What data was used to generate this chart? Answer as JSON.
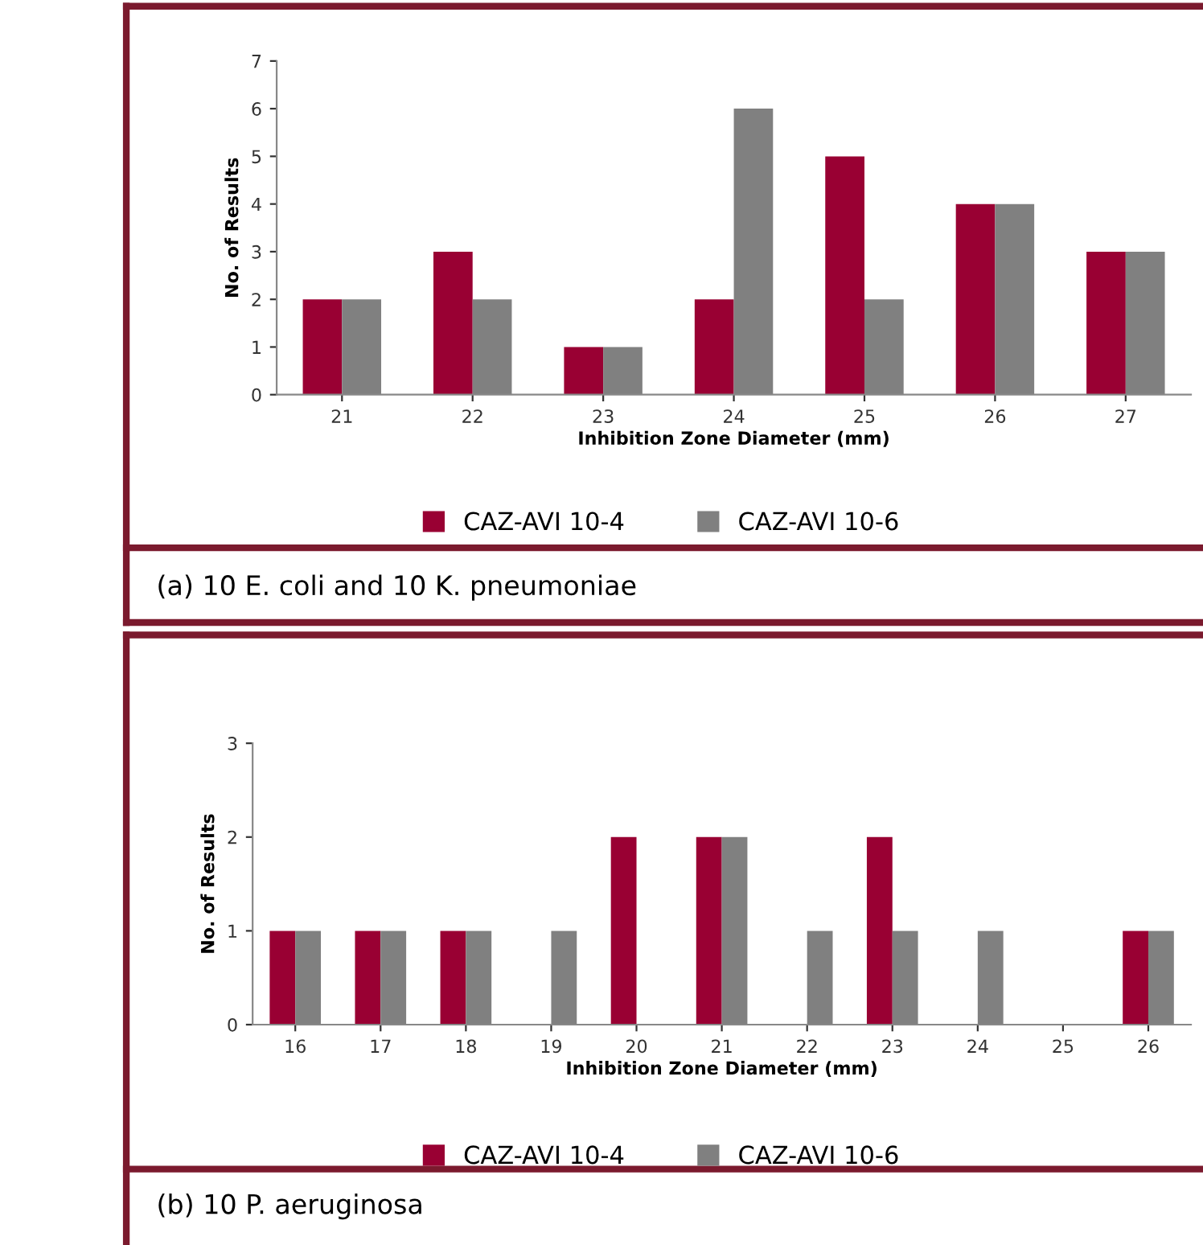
{
  "chart_data": [
    {
      "type": "bar",
      "categories": [
        "21",
        "22",
        "23",
        "24",
        "25",
        "26",
        "27"
      ],
      "xlabel": "Inhibition Zone Diameter (mm)",
      "ylabel": "No. of Results",
      "ylim": [
        0,
        7
      ],
      "yticks": [
        0,
        1,
        2,
        3,
        4,
        5,
        6,
        7
      ],
      "grid": false,
      "legend": "bottom",
      "series": [
        {
          "name": "CAZ-AVI 10-4",
          "color": "#990033",
          "values": [
            2,
            3,
            1,
            2,
            5,
            4,
            3
          ]
        },
        {
          "name": "CAZ-AVI 10-6",
          "color": "#808080",
          "values": [
            2,
            2,
            1,
            6,
            2,
            4,
            3
          ]
        }
      ],
      "annotations": [
        "(a) 10 E. coli and 10 K. pneumoniae"
      ]
    },
    {
      "type": "bar",
      "categories": [
        "16",
        "17",
        "18",
        "19",
        "20",
        "21",
        "22",
        "23",
        "24",
        "25",
        "26"
      ],
      "xlabel": "Inhibition Zone Diameter (mm)",
      "ylabel": "No. of Results",
      "ylim": [
        0,
        3
      ],
      "yticks": [
        0,
        1,
        2,
        3
      ],
      "grid": false,
      "legend": "bottom",
      "series": [
        {
          "name": "CAZ-AVI 10-4",
          "color": "#990033",
          "values": [
            1,
            1,
            1,
            0,
            2,
            2,
            0,
            2,
            0,
            0,
            1
          ]
        },
        {
          "name": "CAZ-AVI 10-6",
          "color": "#808080",
          "values": [
            1,
            1,
            1,
            1,
            0,
            2,
            1,
            1,
            1,
            0,
            1
          ]
        }
      ],
      "annotations": [
        "(b) 10 P. aeruginosa"
      ]
    }
  ]
}
